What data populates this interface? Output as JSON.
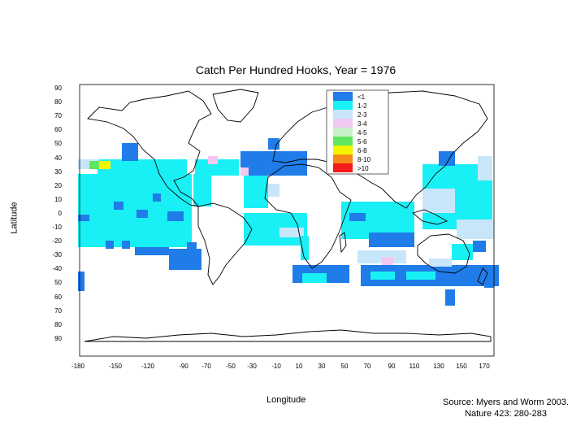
{
  "title": "Catch Per Hundred Hooks, Year = 1976",
  "xlabel": "Longitude",
  "ylabel": "Latitude",
  "source_line1": "Source: Myers and Worm 2003.",
  "source_line2": "Nature 423: 280-283",
  "y_ticks": [
    "90",
    "80",
    "70",
    "60",
    "50",
    "40",
    "30",
    "20",
    "10",
    "0",
    "-10",
    "-20",
    "-30",
    "-40",
    "50",
    "60",
    "70",
    "80",
    "90"
  ],
  "x_ticks": [
    "-180",
    "-150",
    "-120",
    "-90",
    "-70",
    "-50",
    "-30",
    "-10",
    "10",
    "30",
    "50",
    "70",
    "90",
    "110",
    "130",
    "150",
    "170"
  ],
  "legend": [
    {
      "label": "<1",
      "color": "#1f7ce8"
    },
    {
      "label": "1-2",
      "color": "#19f0f5"
    },
    {
      "label": "2-3",
      "color": "#c8e6fa"
    },
    {
      "label": "3-4",
      "color": "#f0c8f0"
    },
    {
      "label": "4-5",
      "color": "#c8f0c8"
    },
    {
      "label": "5-6",
      "color": "#5ee65e"
    },
    {
      "label": "6-8",
      "color": "#f5f500"
    },
    {
      "label": "8-10",
      "color": "#f58c19"
    },
    {
      "label": ">10",
      "color": "#f51919"
    }
  ],
  "colors": {
    "frame": "#000000",
    "coast": "#000000"
  }
}
